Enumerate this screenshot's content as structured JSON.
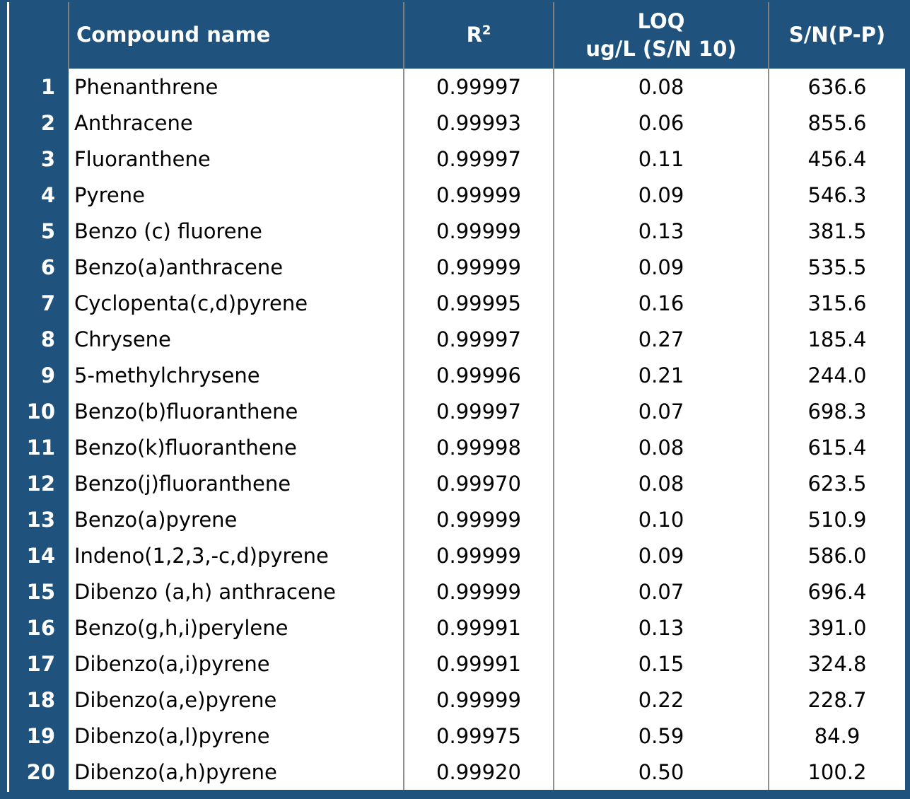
{
  "colors": {
    "frame_and_header_bg": "#1F537E",
    "header_text": "#ffffff",
    "body_text": "#000000",
    "header_divider": "#7F7F7F",
    "body_divider": "#8F8F8F"
  },
  "table": {
    "columns": {
      "num_header": "",
      "compound": "Compound name",
      "r2_base": "R",
      "r2_sup": "2",
      "loq_line1": "LOQ",
      "loq_line2": "ug/L (S/N 10)",
      "sn": "S/N(P-P)"
    },
    "rows": [
      {
        "index": "1",
        "name": "Phenanthrene",
        "r2": "0.99997",
        "loq": "0.08",
        "sn": "636.6"
      },
      {
        "index": "2",
        "name": "Anthracene",
        "r2": "0.99993",
        "loq": "0.06",
        "sn": "855.6"
      },
      {
        "index": "3",
        "name": "Fluoranthene",
        "r2": "0.99997",
        "loq": "0.11",
        "sn": "456.4"
      },
      {
        "index": "4",
        "name": "Pyrene",
        "r2": "0.99999",
        "loq": "0.09",
        "sn": "546.3"
      },
      {
        "index": "5",
        "name": "Benzo (c) fluorene",
        "r2": "0.99999",
        "loq": "0.13",
        "sn": "381.5"
      },
      {
        "index": "6",
        "name": "Benzo(a)anthracene",
        "r2": "0.99999",
        "loq": "0.09",
        "sn": "535.5"
      },
      {
        "index": "7",
        "name": "Cyclopenta(c,d)pyrene",
        "r2": "0.99995",
        "loq": "0.16",
        "sn": "315.6"
      },
      {
        "index": "8",
        "name": "Chrysene",
        "r2": "0.99997",
        "loq": "0.27",
        "sn": "185.4"
      },
      {
        "index": "9",
        "name": "5-methylchrysene",
        "r2": "0.99996",
        "loq": "0.21",
        "sn": "244.0"
      },
      {
        "index": "10",
        "name": "Benzo(b)fluoranthene",
        "r2": "0.99997",
        "loq": "0.07",
        "sn": "698.3"
      },
      {
        "index": "11",
        "name": "Benzo(k)fluoranthene",
        "r2": "0.99998",
        "loq": "0.08",
        "sn": "615.4"
      },
      {
        "index": "12",
        "name": "Benzo(j)fluoranthene",
        "r2": "0.99970",
        "loq": "0.08",
        "sn": "623.5"
      },
      {
        "index": "13",
        "name": "Benzo(a)pyrene",
        "r2": "0.99999",
        "loq": "0.10",
        "sn": "510.9"
      },
      {
        "index": "14",
        "name": "Indeno(1,2,3,-c,d)pyrene",
        "r2": "0.99999",
        "loq": "0.09",
        "sn": "586.0"
      },
      {
        "index": "15",
        "name": "Dibenzo (a,h) anthracene",
        "r2": "0.99999",
        "loq": "0.07",
        "sn": "696.4"
      },
      {
        "index": "16",
        "name": "Benzo(g,h,i)perylene",
        "r2": "0.99991",
        "loq": "0.13",
        "sn": "391.0"
      },
      {
        "index": "17",
        "name": "Dibenzo(a,i)pyrene",
        "r2": "0.99991",
        "loq": "0.15",
        "sn": "324.8"
      },
      {
        "index": "18",
        "name": "Dibenzo(a,e)pyrene",
        "r2": "0.99999",
        "loq": "0.22",
        "sn": "228.7"
      },
      {
        "index": "19",
        "name": "Dibenzo(a,l)pyrene",
        "r2": "0.99975",
        "loq": "0.59",
        "sn": "84.9"
      },
      {
        "index": "20",
        "name": "Dibenzo(a,h)pyrene",
        "r2": "0.99920",
        "loq": "0.50",
        "sn": "100.2"
      }
    ]
  },
  "chart_data": {
    "type": "table",
    "title": "",
    "columns": [
      "#",
      "Compound name",
      "R2",
      "LOQ ug/L (S/N 10)",
      "S/N(P-P)"
    ],
    "rows": [
      [
        1,
        "Phenanthrene",
        0.99997,
        0.08,
        636.6
      ],
      [
        2,
        "Anthracene",
        0.99993,
        0.06,
        855.6
      ],
      [
        3,
        "Fluoranthene",
        0.99997,
        0.11,
        456.4
      ],
      [
        4,
        "Pyrene",
        0.99999,
        0.09,
        546.3
      ],
      [
        5,
        "Benzo (c) fluorene",
        0.99999,
        0.13,
        381.5
      ],
      [
        6,
        "Benzo(a)anthracene",
        0.99999,
        0.09,
        535.5
      ],
      [
        7,
        "Cyclopenta(c,d)pyrene",
        0.99995,
        0.16,
        315.6
      ],
      [
        8,
        "Chrysene",
        0.99997,
        0.27,
        185.4
      ],
      [
        9,
        "5-methylchrysene",
        0.99996,
        0.21,
        244.0
      ],
      [
        10,
        "Benzo(b)fluoranthene",
        0.99997,
        0.07,
        698.3
      ],
      [
        11,
        "Benzo(k)fluoranthene",
        0.99998,
        0.08,
        615.4
      ],
      [
        12,
        "Benzo(j)fluoranthene",
        0.9997,
        0.08,
        623.5
      ],
      [
        13,
        "Benzo(a)pyrene",
        0.99999,
        0.1,
        510.9
      ],
      [
        14,
        "Indeno(1,2,3,-c,d)pyrene",
        0.99999,
        0.09,
        586.0
      ],
      [
        15,
        "Dibenzo (a,h) anthracene",
        0.99999,
        0.07,
        696.4
      ],
      [
        16,
        "Benzo(g,h,i)perylene",
        0.99991,
        0.13,
        391.0
      ],
      [
        17,
        "Dibenzo(a,i)pyrene",
        0.99991,
        0.15,
        324.8
      ],
      [
        18,
        "Dibenzo(a,e)pyrene",
        0.99999,
        0.22,
        228.7
      ],
      [
        19,
        "Dibenzo(a,l)pyrene",
        0.99975,
        0.59,
        84.9
      ],
      [
        20,
        "Dibenzo(a,h)pyrene",
        0.9992,
        0.5,
        100.2
      ]
    ]
  }
}
